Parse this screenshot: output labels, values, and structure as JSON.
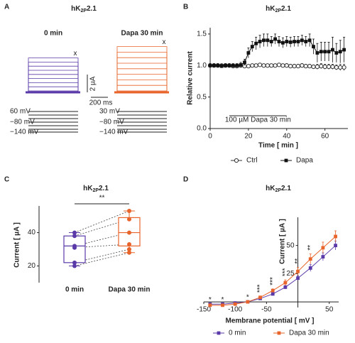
{
  "panel_labels": [
    "A",
    "B",
    "C",
    "D"
  ],
  "panel_a": {
    "title": [
      "hK",
      "2P",
      "2.1"
    ],
    "left_label": "0 min",
    "right_label": "Dapa 30 min",
    "end_marker": "x",
    "scale_current": "2 µA",
    "scale_time": "200 ms",
    "left_protocol": [
      "60 mV",
      "−80 mV",
      "−140 mV"
    ],
    "right_protocol": [
      "30 mV",
      "−80 mV",
      "−140 mV"
    ],
    "left_color": "#5a3aa8",
    "right_color": "#e8642a"
  },
  "chart_data": [
    {
      "type": "line",
      "title": [
        "hK",
        "2P",
        "2.1"
      ],
      "x": [
        0,
        2,
        4,
        6,
        8,
        10,
        12,
        14,
        16,
        18,
        20,
        22,
        24,
        26,
        28,
        30,
        32,
        34,
        36,
        38,
        40,
        42,
        44,
        46,
        48,
        50,
        52,
        54,
        56,
        58,
        60,
        62,
        64,
        66,
        68,
        70
      ],
      "series": [
        {
          "name": "Ctrl",
          "color": "#333333",
          "marker": "open-circle",
          "values": [
            1.0,
            1.0,
            1.0,
            1.0,
            1.0,
            1.0,
            0.99,
            0.99,
            1.0,
            0.99,
            0.99,
            1.0,
            1.0,
            1.01,
            1.0,
            1.0,
            1.0,
            1.0,
            1.01,
            1.0,
            1.0,
            0.99,
            0.99,
            0.99,
            1.0,
            0.99,
            0.99,
            0.98,
            0.98,
            0.99,
            0.98,
            0.98,
            0.98,
            0.97,
            0.97,
            0.97
          ],
          "errors": [
            0.02,
            0.02,
            0.02,
            0.02,
            0.02,
            0.02,
            0.02,
            0.02,
            0.02,
            0.02,
            0.02,
            0.02,
            0.02,
            0.02,
            0.02,
            0.02,
            0.02,
            0.02,
            0.02,
            0.02,
            0.03,
            0.03,
            0.03,
            0.03,
            0.03,
            0.03,
            0.03,
            0.03,
            0.04,
            0.04,
            0.04,
            0.04,
            0.04,
            0.04,
            0.05,
            0.05
          ]
        },
        {
          "name": "Dapa",
          "color": "#111111",
          "marker": "filled-square",
          "values": [
            1.0,
            1.0,
            1.0,
            0.99,
            1.0,
            1.0,
            1.0,
            1.0,
            1.01,
            1.05,
            1.2,
            1.3,
            1.35,
            1.38,
            1.4,
            1.4,
            1.38,
            1.42,
            1.38,
            1.36,
            1.38,
            1.37,
            1.38,
            1.38,
            1.4,
            1.38,
            1.4,
            1.3,
            1.2,
            1.22,
            1.22,
            1.22,
            1.25,
            1.2,
            1.22,
            1.25
          ],
          "errors": [
            0.03,
            0.03,
            0.03,
            0.03,
            0.03,
            0.03,
            0.03,
            0.03,
            0.04,
            0.05,
            0.08,
            0.08,
            0.1,
            0.1,
            0.1,
            0.1,
            0.08,
            0.08,
            0.08,
            0.08,
            0.08,
            0.08,
            0.08,
            0.08,
            0.08,
            0.08,
            0.1,
            0.12,
            0.15,
            0.15,
            0.15,
            0.15,
            0.2,
            0.15,
            0.18,
            0.2
          ]
        }
      ],
      "treatment_window": [
        10,
        40
      ],
      "annotation": "100 µM Dapa 30 min",
      "xlabel": "Time [ min ]",
      "ylabel": "Relative current",
      "xlim": [
        0,
        72
      ],
      "xticks": [
        0,
        20,
        40,
        60
      ],
      "ylim": [
        0,
        1.6
      ],
      "yticks": [
        {
          "value": 0,
          "label": "0.0"
        },
        {
          "value": 0.5,
          "label": "0.5"
        },
        {
          "value": 1,
          "label": "1.0"
        },
        {
          "value": 1.5,
          "label": "1.5"
        }
      ],
      "axes_cross_zero": false
    },
    {
      "type": "box",
      "title": [
        "hK",
        "2P",
        "2.1"
      ],
      "categories": [
        "0 min",
        "Dapa 30 min"
      ],
      "colors": [
        "#5a3aa8",
        "#e8642a"
      ],
      "boxes": [
        {
          "min": 20,
          "q1": 22,
          "median": 32,
          "q3": 38,
          "max": 40
        },
        {
          "min": 28,
          "q1": 32,
          "median": 40,
          "q3": 49,
          "max": 53
        }
      ],
      "points": [
        [
          20,
          22,
          31,
          32,
          38,
          40
        ],
        [
          28,
          30,
          33,
          40,
          48,
          53
        ]
      ],
      "annotation": "**",
      "ylabel": "Current [ µA ]",
      "ylim": [
        10,
        56
      ],
      "yticks": [
        20,
        40
      ]
    },
    {
      "type": "line",
      "title": [
        "hK",
        "2P",
        "2.1"
      ],
      "x": [
        -140,
        -120,
        -100,
        -80,
        -60,
        -40,
        -20,
        0,
        20,
        40,
        60
      ],
      "series": [
        {
          "name": "0 min",
          "color": "#5a3aa8",
          "marker": "filled-square",
          "values": [
            -2,
            -2,
            -1,
            0,
            3,
            7,
            13,
            21,
            30,
            40,
            50
          ],
          "errors": [
            0.5,
            0.5,
            0.5,
            0.5,
            0.7,
            1,
            1.5,
            2,
            3,
            3.5,
            4
          ]
        },
        {
          "name": "Dapa 30 min",
          "color": "#e8642a",
          "marker": "filled-square",
          "values": [
            -3,
            -3,
            -2,
            0,
            4,
            10,
            17,
            27,
            38,
            48,
            58
          ],
          "errors": [
            0.5,
            0.5,
            0.5,
            0.7,
            1,
            1.5,
            2.5,
            3.5,
            4.5,
            5,
            5
          ]
        }
      ],
      "significance": [
        "*",
        "*",
        null,
        "*",
        "***",
        "***",
        "***",
        "**",
        "**",
        null,
        null
      ],
      "xlabel": "Membrane potential [ mV ]",
      "ylabel": "Current [ µA ]",
      "xlim": [
        -150,
        65
      ],
      "xticks": [
        -150,
        -100,
        -50,
        50
      ],
      "ylim": [
        -5,
        75
      ],
      "yticks": [
        25,
        50
      ],
      "axes_cross_zero": true
    }
  ]
}
